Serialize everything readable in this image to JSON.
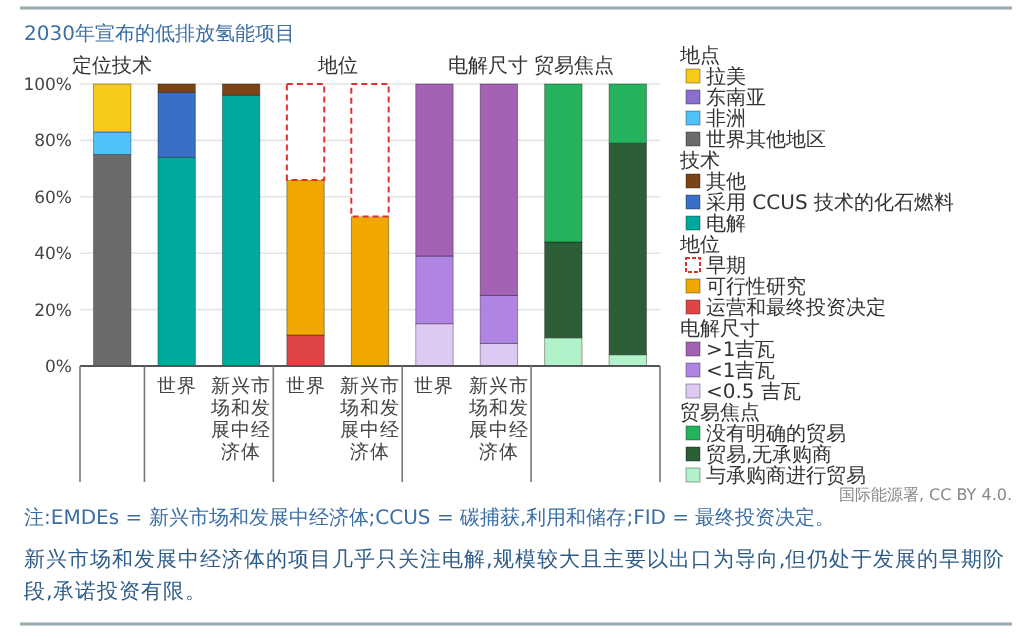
{
  "chart_data": {
    "type": "bar",
    "stacked": true,
    "title": "2030年宣布的低排放氢能项目",
    "categories": [
      null,
      "世界",
      "新兴市场和发展中经济体",
      "世界",
      "新兴市场和发展中经济体",
      "世界",
      "新兴市场和发展中经济体",
      null,
      null
    ],
    "series": [
      {
        "name": "世界其他地区",
        "color": "#6b6b6b",
        "values": [
          75,
          null,
          null,
          null,
          null,
          null,
          null,
          null,
          null
        ]
      },
      {
        "name": "非洲",
        "color": "#4fc3f7",
        "values": [
          8,
          null,
          null,
          null,
          null,
          null,
          null,
          null,
          null
        ]
      },
      {
        "name": "东南亚",
        "color": "#8b6fd0",
        "values": [
          0,
          null,
          null,
          null,
          null,
          null,
          null,
          null,
          null
        ]
      },
      {
        "name": "拉美",
        "color": "#f7cb1c",
        "values": [
          17,
          null,
          null,
          null,
          null,
          null,
          null,
          null,
          null
        ]
      },
      {
        "name": "电解",
        "color": "#00a99d",
        "values": [
          null,
          74,
          96,
          null,
          null,
          null,
          null,
          null,
          null
        ]
      },
      {
        "name": "采用 CCUS 技术的化石燃料",
        "color": "#3a6fc8",
        "values": [
          null,
          23,
          0,
          null,
          null,
          null,
          null,
          null,
          null
        ]
      },
      {
        "name": "其他",
        "color": "#7a4416",
        "values": [
          null,
          3,
          4,
          null,
          null,
          null,
          null,
          null,
          null
        ]
      },
      {
        "name": "运营和最终投资决定",
        "color": "#e04545",
        "values": [
          null,
          null,
          null,
          11,
          null,
          null,
          null,
          null,
          null
        ]
      },
      {
        "name": "可行性研究",
        "color": "#f0a800",
        "values": [
          null,
          null,
          null,
          55,
          53,
          null,
          null,
          null,
          null
        ]
      },
      {
        "name": "早期",
        "color": "#e03030",
        "line_style": "dashed",
        "values": [
          null,
          null,
          null,
          34,
          47,
          null,
          null,
          null,
          null
        ]
      },
      {
        "name": "<0.5 吉瓦",
        "color": "#ddc9f2",
        "values": [
          null,
          null,
          null,
          null,
          null,
          15,
          8,
          null,
          null
        ]
      },
      {
        "name": "<1吉瓦",
        "color": "#b084e2",
        "values": [
          null,
          null,
          null,
          null,
          null,
          24,
          17,
          null,
          null
        ]
      },
      {
        "name": ">1吉瓦",
        "color": "#a462b5",
        "values": [
          null,
          null,
          null,
          null,
          null,
          61,
          75,
          null,
          null
        ]
      },
      {
        "name": "与承购商进行贸易",
        "color": "#b2f2cb",
        "values": [
          null,
          null,
          null,
          null,
          null,
          null,
          null,
          10,
          4
        ]
      },
      {
        "name": "贸易,无承购商",
        "color": "#2c5e38",
        "values": [
          null,
          null,
          null,
          null,
          null,
          null,
          null,
          34,
          75
        ]
      },
      {
        "name": "没有明确的贸易",
        "color": "#24b35c",
        "values": [
          null,
          null,
          null,
          null,
          null,
          null,
          null,
          56,
          21
        ]
      }
    ],
    "ylim": [
      0,
      100
    ],
    "yticks": [
      {
        "value": 0,
        "label": "0%"
      },
      {
        "value": 20,
        "label": "20%"
      },
      {
        "value": 40,
        "label": "40%"
      },
      {
        "value": 60,
        "label": "60%"
      },
      {
        "value": 80,
        "label": "80%"
      },
      {
        "value": 100,
        "label": "100%"
      }
    ],
    "grid": "y",
    "legend": "right",
    "annotations": [
      "定位技术",
      "地位",
      "电解尺寸 贸易焦点",
      "地点",
      "技术",
      "地位",
      "电解尺寸",
      "贸易焦点",
      "国际能源署, CC BY 4.0.",
      "注:EMDEs = 新兴市场和发展中经济体;CCUS = 碳捕获,利用和储存;FID = 最终投资决定。",
      "新兴市场和发展中经济体的项目几乎只关注电解,规模较大且主要以出口为导向,但仍处于发展的早期阶段,承诺投资有限。"
    ]
  }
}
